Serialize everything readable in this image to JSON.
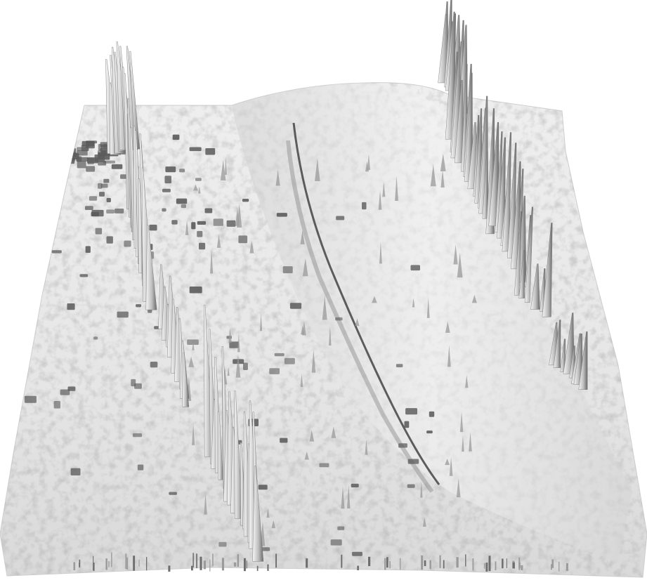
{
  "scene": {
    "subject": "3d-terrain-surface",
    "surface_color": "#e9e9e9",
    "shadow_color": "#5a5a5a",
    "spike_light": "#f2f2f2",
    "spike_dark": "#6e6e6e",
    "background": "#ffffff"
  }
}
